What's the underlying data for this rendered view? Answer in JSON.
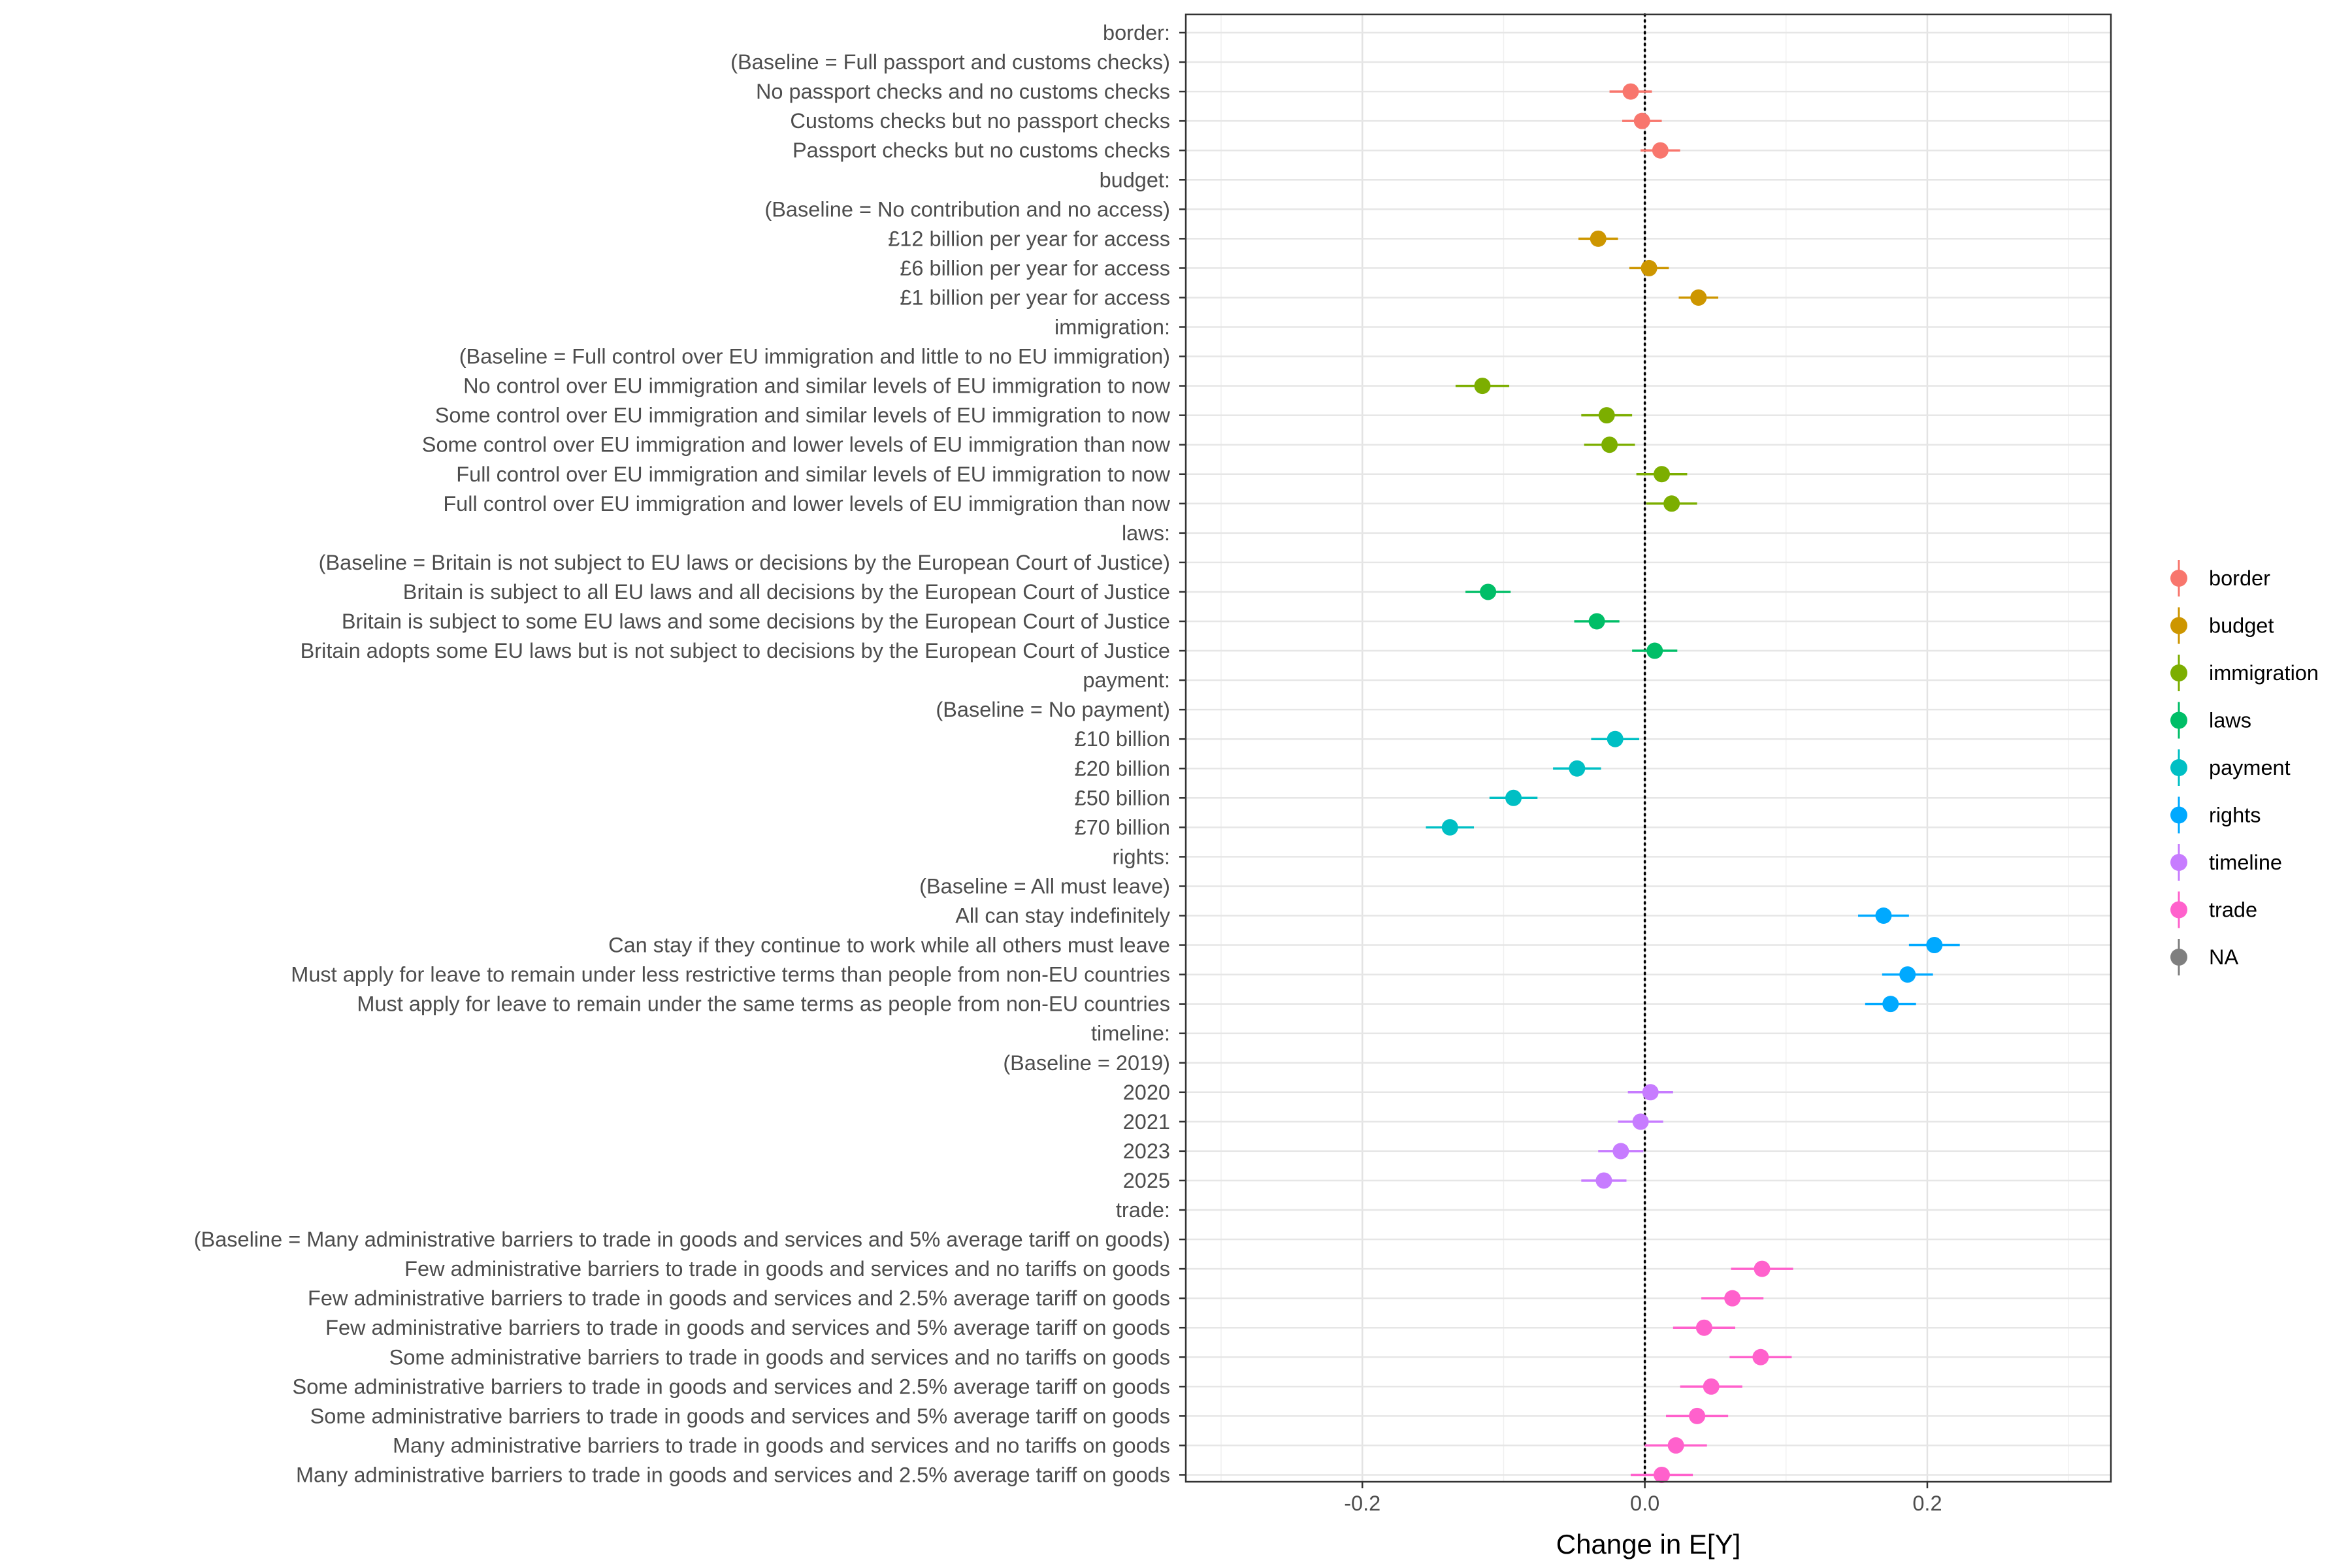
{
  "chart_data": {
    "type": "scatter",
    "subtype": "coefficient-plot",
    "title": "",
    "xlabel": "Change in E[Y]",
    "ylabel": "",
    "xlim": [
      -0.325,
      0.33
    ],
    "xticks": [
      -0.2,
      0.0,
      0.2
    ],
    "xtick_labels": [
      "-0.2",
      "0.0",
      "0.2"
    ],
    "reference_line_x": 0,
    "grid": true,
    "legend_position": "right",
    "legend": [
      {
        "name": "border",
        "color": "#F8766D"
      },
      {
        "name": "budget",
        "color": "#CD9600"
      },
      {
        "name": "immigration",
        "color": "#7CAE00"
      },
      {
        "name": "laws",
        "color": "#00BE67"
      },
      {
        "name": "payment",
        "color": "#00BFC4"
      },
      {
        "name": "rights",
        "color": "#00A9FF"
      },
      {
        "name": "timeline",
        "color": "#C77CFF"
      },
      {
        "name": "trade",
        "color": "#FF61CC"
      },
      {
        "name": "NA",
        "color": "#7F7F7F"
      }
    ],
    "rows": [
      {
        "label": "border:"
      },
      {
        "label": "(Baseline = Full passport and customs checks)"
      },
      {
        "label": "No passport checks and no customs checks",
        "group": "border",
        "x": -0.01,
        "ci": [
          -0.025,
          0.005
        ]
      },
      {
        "label": "Customs checks but no passport checks",
        "group": "border",
        "x": -0.002,
        "ci": [
          -0.016,
          0.012
        ]
      },
      {
        "label": "Passport checks but no customs checks",
        "group": "border",
        "x": 0.011,
        "ci": [
          -0.003,
          0.025
        ]
      },
      {
        "label": "budget:"
      },
      {
        "label": "(Baseline = No contribution and no access)"
      },
      {
        "label": "£12 billion per year for access",
        "group": "budget",
        "x": -0.033,
        "ci": [
          -0.047,
          -0.019
        ]
      },
      {
        "label": "£6 billion per year for access",
        "group": "budget",
        "x": 0.003,
        "ci": [
          -0.011,
          0.017
        ]
      },
      {
        "label": "£1 billion per year for access",
        "group": "budget",
        "x": 0.038,
        "ci": [
          0.024,
          0.052
        ]
      },
      {
        "label": "immigration:"
      },
      {
        "label": "(Baseline = Full control over EU immigration and little to no EU immigration)"
      },
      {
        "label": "No control over EU immigration and similar levels of EU immigration to now",
        "group": "immigration",
        "x": -0.115,
        "ci": [
          -0.134,
          -0.096
        ]
      },
      {
        "label": "Some control over EU immigration and similar levels of EU immigration to now",
        "group": "immigration",
        "x": -0.027,
        "ci": [
          -0.045,
          -0.009
        ]
      },
      {
        "label": "Some control over EU immigration and lower levels of EU immigration than now",
        "group": "immigration",
        "x": -0.025,
        "ci": [
          -0.043,
          -0.007
        ]
      },
      {
        "label": "Full control over EU immigration and similar levels of EU immigration to now",
        "group": "immigration",
        "x": 0.012,
        "ci": [
          -0.006,
          0.03
        ]
      },
      {
        "label": "Full control over EU immigration and lower levels of EU immigration than now",
        "group": "immigration",
        "x": 0.019,
        "ci": [
          0.001,
          0.037
        ]
      },
      {
        "label": "laws:"
      },
      {
        "label": "(Baseline = Britain is not subject to EU laws or decisions by the European Court of Justice)"
      },
      {
        "label": "Britain is subject to all EU laws and all decisions by the European Court of Justice",
        "group": "laws",
        "x": -0.111,
        "ci": [
          -0.127,
          -0.095
        ]
      },
      {
        "label": "Britain is subject to some EU laws and some decisions by the European Court of Justice",
        "group": "laws",
        "x": -0.034,
        "ci": [
          -0.05,
          -0.018
        ]
      },
      {
        "label": "Britain adopts some EU laws but is not subject to decisions by the European Court of Justice",
        "group": "laws",
        "x": 0.007,
        "ci": [
          -0.009,
          0.023
        ]
      },
      {
        "label": "payment:"
      },
      {
        "label": "(Baseline = No payment)"
      },
      {
        "label": "£10 billion",
        "group": "payment",
        "x": -0.021,
        "ci": [
          -0.038,
          -0.004
        ]
      },
      {
        "label": "£20 billion",
        "group": "payment",
        "x": -0.048,
        "ci": [
          -0.065,
          -0.031
        ]
      },
      {
        "label": "£50 billion",
        "group": "payment",
        "x": -0.093,
        "ci": [
          -0.11,
          -0.076
        ]
      },
      {
        "label": "£70 billion",
        "group": "payment",
        "x": -0.138,
        "ci": [
          -0.155,
          -0.121
        ]
      },
      {
        "label": "rights:"
      },
      {
        "label": "(Baseline = All must leave)"
      },
      {
        "label": "All can stay indefinitely",
        "group": "rights",
        "x": 0.169,
        "ci": [
          0.151,
          0.187
        ]
      },
      {
        "label": "Can stay if they continue to work while all others must leave",
        "group": "rights",
        "x": 0.205,
        "ci": [
          0.187,
          0.223
        ]
      },
      {
        "label": "Must apply for leave to remain under less restrictive terms than people from non-EU countries",
        "group": "rights",
        "x": 0.186,
        "ci": [
          0.168,
          0.204
        ]
      },
      {
        "label": "Must apply for leave to remain under the same terms as people from non-EU countries",
        "group": "rights",
        "x": 0.174,
        "ci": [
          0.156,
          0.192
        ]
      },
      {
        "label": "timeline:"
      },
      {
        "label": "(Baseline = 2019)"
      },
      {
        "label": "2020",
        "group": "timeline",
        "x": 0.004,
        "ci": [
          -0.012,
          0.02
        ]
      },
      {
        "label": "2021",
        "group": "timeline",
        "x": -0.003,
        "ci": [
          -0.019,
          0.013
        ]
      },
      {
        "label": "2023",
        "group": "timeline",
        "x": -0.017,
        "ci": [
          -0.033,
          -0.001
        ]
      },
      {
        "label": "2025",
        "group": "timeline",
        "x": -0.029,
        "ci": [
          -0.045,
          -0.013
        ]
      },
      {
        "label": "trade:"
      },
      {
        "label": "(Baseline = Many administrative barriers to trade in goods and services and 5% average tariff on goods)"
      },
      {
        "label": "Few administrative barriers to trade in goods and services and no tariffs on goods",
        "group": "trade",
        "x": 0.083,
        "ci": [
          0.061,
          0.105
        ]
      },
      {
        "label": "Few administrative barriers to trade in goods and services and 2.5% average tariff on goods",
        "group": "trade",
        "x": 0.062,
        "ci": [
          0.04,
          0.084
        ]
      },
      {
        "label": "Few administrative barriers to trade in goods and services and 5% average tariff on goods",
        "group": "trade",
        "x": 0.042,
        "ci": [
          0.02,
          0.064
        ]
      },
      {
        "label": "Some administrative barriers to trade in goods and services and no tariffs on goods",
        "group": "trade",
        "x": 0.082,
        "ci": [
          0.06,
          0.104
        ]
      },
      {
        "label": "Some administrative barriers to trade in goods and services and 2.5% average tariff on goods",
        "group": "trade",
        "x": 0.047,
        "ci": [
          0.025,
          0.069
        ]
      },
      {
        "label": "Some administrative barriers to trade in goods and services and 5% average tariff on goods",
        "group": "trade",
        "x": 0.037,
        "ci": [
          0.015,
          0.059
        ]
      },
      {
        "label": "Many administrative barriers to trade in goods and services and no tariffs on goods",
        "group": "trade",
        "x": 0.022,
        "ci": [
          0.0,
          0.044
        ]
      },
      {
        "label": "Many administrative barriers to trade in goods and services and 2.5% average tariff on goods",
        "group": "trade",
        "x": 0.012,
        "ci": [
          -0.01,
          0.034
        ]
      }
    ]
  }
}
